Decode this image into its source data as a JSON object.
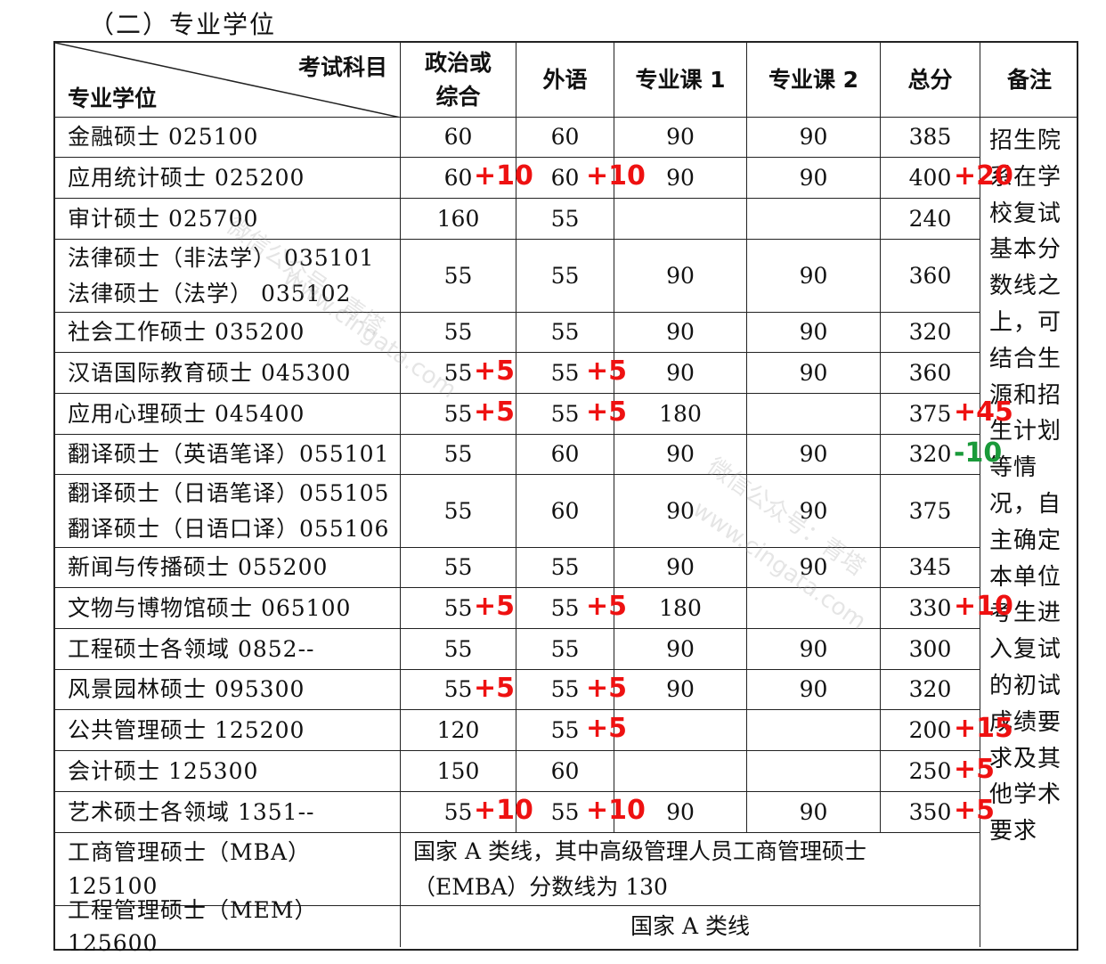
{
  "section_title": "（二）专业学位",
  "header": {
    "diag_top": "考试科目",
    "diag_bottom": "专业学位",
    "cols": [
      "政治或\n综合",
      "外语",
      "专业课 1",
      "专业课 2",
      "总分",
      "备注"
    ]
  },
  "rows": [
    {
      "name": "金融硕士  025100",
      "c1": "60",
      "c2": "60",
      "c3": "90",
      "c4": "90",
      "c5": "385"
    },
    {
      "name": "应用统计硕士  025200",
      "c1": "60",
      "c2": "60",
      "c3": "90",
      "c4": "90",
      "c5": "400"
    },
    {
      "name": "审计硕士  025700",
      "c1": "160",
      "c2": "55",
      "c3": "",
      "c4": "",
      "c5": "240"
    },
    {
      "name": "法律硕士（非法学）  035101\n法律硕士（法学）  035102",
      "c1": "55",
      "c2": "55",
      "c3": "90",
      "c4": "90",
      "c5": "360"
    },
    {
      "name": "社会工作硕士 035200",
      "c1": "55",
      "c2": "55",
      "c3": "90",
      "c4": "90",
      "c5": "320"
    },
    {
      "name": "汉语国际教育硕士 045300",
      "c1": "55",
      "c2": "55",
      "c3": "90",
      "c4": "90",
      "c5": "360"
    },
    {
      "name": "应用心理硕士  045400",
      "c1": "55",
      "c2": "55",
      "c3": "180",
      "c4": "",
      "c5": "375"
    },
    {
      "name": "翻译硕士（英语笔译）055101",
      "c1": "55",
      "c2": "60",
      "c3": "90",
      "c4": "90",
      "c5": "320"
    },
    {
      "name": "翻译硕士（日语笔译）055105\n翻译硕士（日语口译）055106",
      "c1": "55",
      "c2": "60",
      "c3": "90",
      "c4": "90",
      "c5": "375"
    },
    {
      "name": "新闻与传播硕士 055200",
      "c1": "55",
      "c2": "55",
      "c3": "90",
      "c4": "90",
      "c5": "345"
    },
    {
      "name": "文物与博物馆硕士  065100",
      "c1": "55",
      "c2": "55",
      "c3": "180",
      "c4": "",
      "c5": "330"
    },
    {
      "name": "工程硕士各领域 0852--",
      "c1": "55",
      "c2": "55",
      "c3": "90",
      "c4": "90",
      "c5": "300"
    },
    {
      "name": "风景园林硕士  095300",
      "c1": "55",
      "c2": "55",
      "c3": "90",
      "c4": "90",
      "c5": "320"
    },
    {
      "name": "公共管理硕士  125200",
      "c1": "120",
      "c2": "55",
      "c3": "",
      "c4": "",
      "c5": "200"
    },
    {
      "name": "会计硕士 125300",
      "c1": "150",
      "c2": "60",
      "c3": "",
      "c4": "",
      "c5": "250"
    },
    {
      "name": "艺术硕士各领域 1351--",
      "c1": "55",
      "c2": "55",
      "c3": "90",
      "c4": "90",
      "c5": "350"
    }
  ],
  "special_rows": [
    {
      "name": "工商管理硕士（MBA）125100",
      "text": "国家 A 类线，其中高级管理人员工商管理硕士（EMBA）分数线为 130"
    },
    {
      "name": "工程管理硕士（MEM）125600",
      "text": "国家 A 类线"
    }
  ],
  "note": "招生院系在学校复试基本分数线之上，可结合生源和招生计划等情况，自主确定本单位考生进入复试的初试成绩要求及其他学术要求",
  "adjustments": [
    {
      "row": 1,
      "col": "c1",
      "text": "+10"
    },
    {
      "row": 1,
      "col": "c2",
      "text": "+10"
    },
    {
      "row": 1,
      "col": "c5",
      "text": "+20"
    },
    {
      "row": 5,
      "col": "c1",
      "text": "+5"
    },
    {
      "row": 5,
      "col": "c2",
      "text": "+5"
    },
    {
      "row": 6,
      "col": "c1",
      "text": "+5"
    },
    {
      "row": 6,
      "col": "c2",
      "text": "+5"
    },
    {
      "row": 6,
      "col": "c5",
      "text": "+45"
    },
    {
      "row": 7,
      "col": "c5",
      "text": "-10"
    },
    {
      "row": 10,
      "col": "c1",
      "text": "+5"
    },
    {
      "row": 10,
      "col": "c2",
      "text": "+5"
    },
    {
      "row": 10,
      "col": "c5",
      "text": "+10"
    },
    {
      "row": 12,
      "col": "c1",
      "text": "+5"
    },
    {
      "row": 12,
      "col": "c2",
      "text": "+5"
    },
    {
      "row": 13,
      "col": "c2",
      "text": "+5"
    },
    {
      "row": 13,
      "col": "c5",
      "text": "+15"
    },
    {
      "row": 14,
      "col": "c5",
      "text": "+5"
    },
    {
      "row": 15,
      "col": "c1",
      "text": "+10"
    },
    {
      "row": 15,
      "col": "c2",
      "text": "+10"
    },
    {
      "row": 15,
      "col": "c5",
      "text": "+5"
    }
  ],
  "watermarks": [
    "微信公众号：青塔",
    "www.cingata.com"
  ],
  "colors": {
    "positive_adjust": "#ee1111",
    "negative_adjust": "#1a9a3a",
    "border": "#222222"
  }
}
